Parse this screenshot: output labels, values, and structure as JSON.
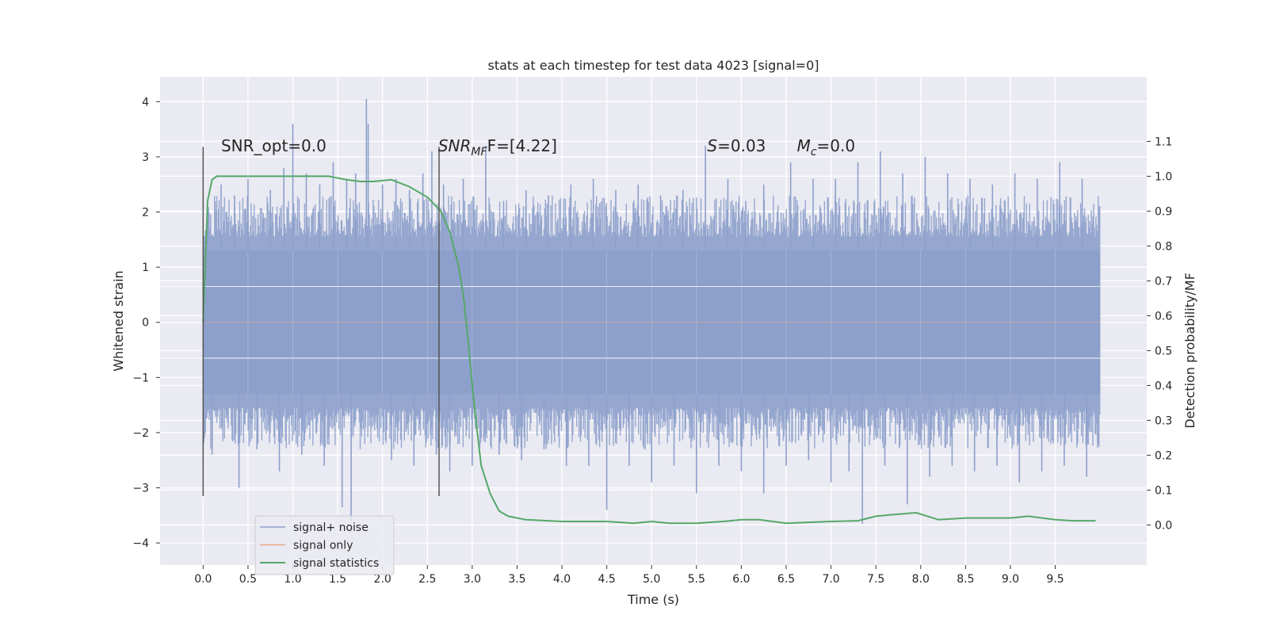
{
  "chart_data": {
    "type": "line",
    "title": "stats at each timestep for test data 4023 [signal=0]",
    "xlabel": "Time (s)",
    "ylabel": "Whitened strain",
    "y2label": "Detection probability/MF",
    "xlim": [
      -0.48,
      10.52
    ],
    "ylim": [
      -4.4,
      4.45
    ],
    "y2lim": [
      -0.115,
      1.285
    ],
    "x_ticks": [
      0.0,
      0.5,
      1.0,
      1.5,
      2.0,
      2.5,
      3.0,
      3.5,
      4.0,
      4.5,
      5.0,
      5.5,
      6.0,
      6.5,
      7.0,
      7.5,
      8.0,
      8.5,
      9.0,
      9.5
    ],
    "x_tick_labels": [
      "0.0",
      "0.5",
      "1.0",
      "1.5",
      "2.0",
      "2.5",
      "3.0",
      "3.5",
      "4.0",
      "4.5",
      "5.0",
      "5.5",
      "6.0",
      "6.5",
      "7.0",
      "7.5",
      "8.0",
      "8.5",
      "9.0",
      "9.5"
    ],
    "y_ticks": [
      4,
      3,
      2,
      1,
      0,
      -1,
      -2,
      -3,
      -4
    ],
    "y_tick_labels": [
      "4",
      "3",
      "2",
      "1",
      "0",
      "−1",
      "−2",
      "−3",
      "−4"
    ],
    "y2_ticks": [
      1.1,
      1.0,
      0.9,
      0.8,
      0.7,
      0.6,
      0.5,
      0.4,
      0.3,
      0.2,
      0.1,
      0.0
    ],
    "y2_tick_labels": [
      "1.1",
      "1.0",
      "0.9",
      "0.8",
      "0.7",
      "0.6",
      "0.5",
      "0.4",
      "0.3",
      "0.2",
      "0.1",
      "0.0"
    ],
    "grid": true,
    "legend": {
      "placement": "lower-left",
      "entries": [
        {
          "label": "signal+ noise",
          "color": "#8da0cb"
        },
        {
          "label": "signal only",
          "color": "#e8a487"
        },
        {
          "label": "signal statistics",
          "color": "#55a868"
        }
      ]
    },
    "series": [
      {
        "name": "signal+ noise",
        "color": "#8da0cb",
        "axis": "left",
        "x_range": [
          0.0,
          10.0
        ],
        "core_band": [
          -1.3,
          1.3
        ],
        "peaks_x": [
          0.05,
          0.2,
          0.35,
          0.5,
          0.75,
          0.9,
          1.0,
          1.15,
          1.3,
          1.45,
          1.6,
          1.7,
          1.82,
          1.84,
          2.0,
          2.15,
          2.3,
          2.45,
          2.55,
          2.68,
          2.9,
          3.15,
          3.35,
          3.6,
          3.85,
          4.1,
          4.35,
          4.6,
          4.85,
          5.1,
          5.35,
          5.6,
          5.85,
          6.05,
          6.25,
          6.55,
          6.8,
          7.05,
          7.3,
          7.55,
          7.8,
          8.05,
          8.3,
          8.55,
          8.8,
          9.05,
          9.3,
          9.55,
          9.8
        ],
        "peaks_y": [
          2.1,
          2.5,
          2.3,
          2.6,
          2.4,
          2.8,
          3.6,
          2.7,
          2.5,
          2.9,
          2.6,
          2.7,
          4.05,
          3.6,
          2.5,
          2.6,
          2.4,
          2.7,
          3.1,
          2.5,
          2.6,
          3.2,
          2.2,
          2.4,
          2.3,
          2.5,
          2.6,
          2.4,
          2.5,
          2.3,
          2.4,
          3.2,
          2.6,
          2.2,
          2.5,
          2.9,
          2.6,
          2.6,
          2.9,
          3.1,
          2.7,
          3.0,
          2.7,
          2.6,
          2.5,
          2.7,
          2.6,
          2.9,
          2.6
        ],
        "troughs_x": [
          0.1,
          0.4,
          0.6,
          0.85,
          1.1,
          1.35,
          1.55,
          1.65,
          2.1,
          2.35,
          2.6,
          2.75,
          3.0,
          3.3,
          3.55,
          3.8,
          4.05,
          4.3,
          4.5,
          4.75,
          5.0,
          5.25,
          5.5,
          5.75,
          6.0,
          6.25,
          6.5,
          6.75,
          7.0,
          7.2,
          7.35,
          7.6,
          7.85,
          8.1,
          8.35,
          8.6,
          8.85,
          9.1,
          9.35,
          9.6,
          9.85
        ],
        "troughs_y": [
          -2.4,
          -3.0,
          -2.3,
          -2.7,
          -2.4,
          -2.6,
          -3.35,
          -3.6,
          -2.5,
          -2.6,
          -2.4,
          -2.7,
          -2.6,
          -2.4,
          -2.5,
          -2.3,
          -2.6,
          -2.6,
          -3.4,
          -2.6,
          -2.9,
          -2.6,
          -3.1,
          -2.6,
          -2.7,
          -3.1,
          -2.6,
          -2.5,
          -2.9,
          -2.7,
          -3.65,
          -2.6,
          -3.3,
          -2.8,
          -2.6,
          -2.7,
          -2.6,
          -2.9,
          -2.7,
          -2.6,
          -2.8
        ]
      },
      {
        "name": "signal only",
        "color": "#e8a487",
        "axis": "left",
        "x": [
          0.0,
          10.0
        ],
        "y": [
          0.0,
          0.0
        ]
      },
      {
        "name": "signal statistics",
        "color": "#55a868",
        "axis": "right",
        "x": [
          0.0,
          0.05,
          0.1,
          0.15,
          0.25,
          0.5,
          1.0,
          1.4,
          1.6,
          1.75,
          1.9,
          2.1,
          2.3,
          2.5,
          2.65,
          2.75,
          2.85,
          2.9,
          2.95,
          3.0,
          3.05,
          3.1,
          3.2,
          3.3,
          3.4,
          3.6,
          4.0,
          4.5,
          4.8,
          5.0,
          5.2,
          5.5,
          5.8,
          6.0,
          6.2,
          6.5,
          7.0,
          7.3,
          7.5,
          7.7,
          7.95,
          8.2,
          8.5,
          8.8,
          9.0,
          9.2,
          9.5,
          9.7,
          9.95
        ],
        "y": [
          0.58,
          0.93,
          0.99,
          1.0,
          1.0,
          1.0,
          1.0,
          1.0,
          0.99,
          0.985,
          0.985,
          0.99,
          0.97,
          0.94,
          0.9,
          0.84,
          0.74,
          0.66,
          0.54,
          0.4,
          0.28,
          0.17,
          0.09,
          0.04,
          0.025,
          0.015,
          0.01,
          0.01,
          0.005,
          0.01,
          0.005,
          0.005,
          0.01,
          0.015,
          0.015,
          0.005,
          0.01,
          0.012,
          0.025,
          0.03,
          0.035,
          0.015,
          0.02,
          0.02,
          0.02,
          0.025,
          0.015,
          0.012,
          0.012
        ]
      }
    ],
    "vlines": [
      {
        "x": 0.0,
        "color": "#555555"
      },
      {
        "x": 2.63,
        "color": "#555555"
      }
    ],
    "annotations": [
      {
        "text": "SNR_opt=0.0",
        "x": 0.2,
        "y": 3.2
      },
      {
        "text_main": "SNR",
        "text_sub": "MF",
        "text_rest": "F=[4.22]",
        "x": 2.62,
        "y": 3.2
      },
      {
        "text_main": "S",
        "text_rest": "=0.03",
        "x": 5.62,
        "y": 3.2
      },
      {
        "text_main": "M",
        "text_sub": "c",
        "text_rest": "=0.0",
        "x": 6.62,
        "y": 3.2
      }
    ]
  }
}
